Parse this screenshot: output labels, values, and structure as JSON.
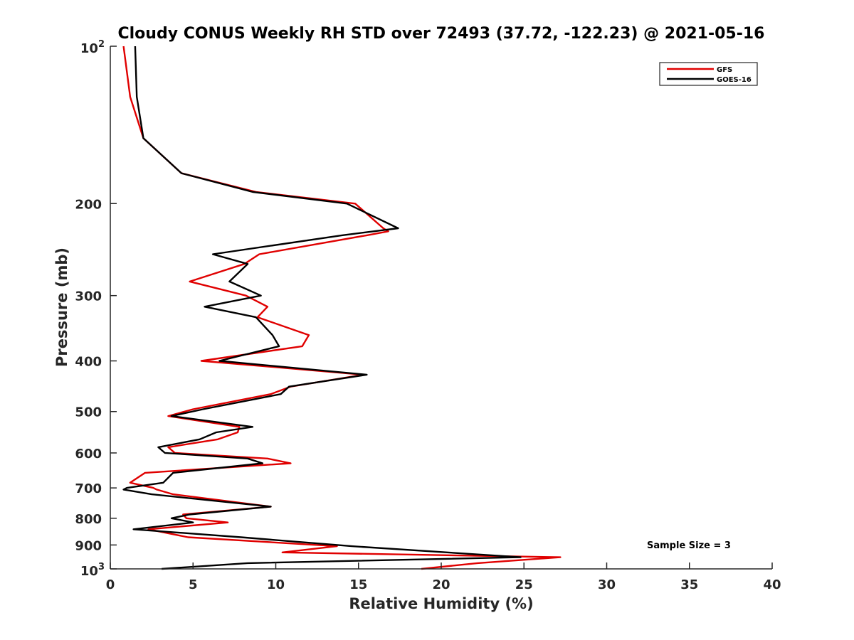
{
  "chart_data": {
    "type": "line",
    "title": "Cloudy CONUS Weekly RH STD over 72493 (37.72, -122.23) @ 2021-05-16",
    "xlabel": "Relative Humidity (%)",
    "ylabel": "Pressure (mb)",
    "xlim": [
      0,
      40
    ],
    "ylim": [
      100,
      1000
    ],
    "y_scale": "log",
    "y_reversed": true,
    "grid": false,
    "legend_position": "top-right",
    "x_ticks": [
      "0",
      "5",
      "10",
      "15",
      "20",
      "25",
      "30",
      "35",
      "40"
    ],
    "y_ticks": [
      {
        "value": 200,
        "label": "200"
      },
      {
        "value": 300,
        "label": "300"
      },
      {
        "value": 400,
        "label": "400"
      },
      {
        "value": 500,
        "label": "500"
      },
      {
        "value": 600,
        "label": "600"
      },
      {
        "value": 700,
        "label": "700"
      },
      {
        "value": 800,
        "label": "800"
      },
      {
        "value": 900,
        "label": "900"
      }
    ],
    "y_power_ticks": [
      {
        "value": 100,
        "base": "10",
        "exp": "2"
      },
      {
        "value": 1000,
        "base": "10",
        "exp": "3"
      }
    ],
    "annotation": "Sample Size = 3",
    "series": [
      {
        "name": "GFS",
        "color": "#e00000",
        "points": [
          [
            0.8,
            100
          ],
          [
            1.2,
            125
          ],
          [
            2.0,
            150
          ],
          [
            4.3,
            175
          ],
          [
            8.8,
            190
          ],
          [
            14.8,
            200
          ],
          [
            16.5,
            223
          ],
          [
            16.8,
            226
          ],
          [
            15.5,
            230
          ],
          [
            9.0,
            250
          ],
          [
            8.1,
            261
          ],
          [
            4.8,
            282
          ],
          [
            8.2,
            300
          ],
          [
            9.5,
            315
          ],
          [
            8.9,
            330
          ],
          [
            12.0,
            357
          ],
          [
            11.6,
            375
          ],
          [
            5.5,
            400
          ],
          [
            15.3,
            425
          ],
          [
            10.9,
            448
          ],
          [
            9.7,
            463
          ],
          [
            5.0,
            495
          ],
          [
            3.5,
            510
          ],
          [
            7.8,
            535
          ],
          [
            7.7,
            548
          ],
          [
            6.5,
            565
          ],
          [
            3.5,
            585
          ],
          [
            3.9,
            600
          ],
          [
            9.5,
            615
          ],
          [
            10.9,
            628
          ],
          [
            2.1,
            655
          ],
          [
            1.2,
            684
          ],
          [
            2.6,
            700
          ],
          [
            2.8,
            705
          ],
          [
            3.8,
            720
          ],
          [
            9.7,
            760
          ],
          [
            4.4,
            787
          ],
          [
            4.6,
            800
          ],
          [
            7.1,
            815
          ],
          [
            2.3,
            840
          ],
          [
            4.7,
            870
          ],
          [
            13.7,
            905
          ],
          [
            10.4,
            930
          ],
          [
            27.2,
            950
          ],
          [
            22.2,
            975
          ],
          [
            18.8,
            1000
          ]
        ]
      },
      {
        "name": "GOES-16",
        "color": "#000000",
        "points": [
          [
            1.5,
            100
          ],
          [
            1.6,
            125
          ],
          [
            2.0,
            150
          ],
          [
            4.3,
            175
          ],
          [
            8.6,
            190
          ],
          [
            14.3,
            200
          ],
          [
            17.4,
            223
          ],
          [
            14.0,
            230
          ],
          [
            6.2,
            250
          ],
          [
            8.3,
            261
          ],
          [
            7.2,
            282
          ],
          [
            9.1,
            300
          ],
          [
            5.7,
            315
          ],
          [
            8.8,
            330
          ],
          [
            9.8,
            357
          ],
          [
            10.2,
            375
          ],
          [
            6.6,
            400
          ],
          [
            15.5,
            425
          ],
          [
            10.8,
            448
          ],
          [
            10.3,
            463
          ],
          [
            5.6,
            495
          ],
          [
            3.7,
            510
          ],
          [
            8.6,
            535
          ],
          [
            6.4,
            548
          ],
          [
            5.4,
            565
          ],
          [
            2.9,
            585
          ],
          [
            3.3,
            600
          ],
          [
            8.3,
            615
          ],
          [
            9.2,
            628
          ],
          [
            3.8,
            655
          ],
          [
            3.2,
            684
          ],
          [
            1.0,
            700
          ],
          [
            0.8,
            705
          ],
          [
            2.5,
            720
          ],
          [
            9.7,
            760
          ],
          [
            4.8,
            787
          ],
          [
            3.7,
            800
          ],
          [
            5.0,
            815
          ],
          [
            1.4,
            840
          ],
          [
            7.9,
            870
          ],
          [
            14.6,
            905
          ],
          [
            24.8,
            950
          ],
          [
            8.3,
            975
          ],
          [
            6.2,
            985
          ],
          [
            3.1,
            1000
          ]
        ]
      }
    ]
  }
}
